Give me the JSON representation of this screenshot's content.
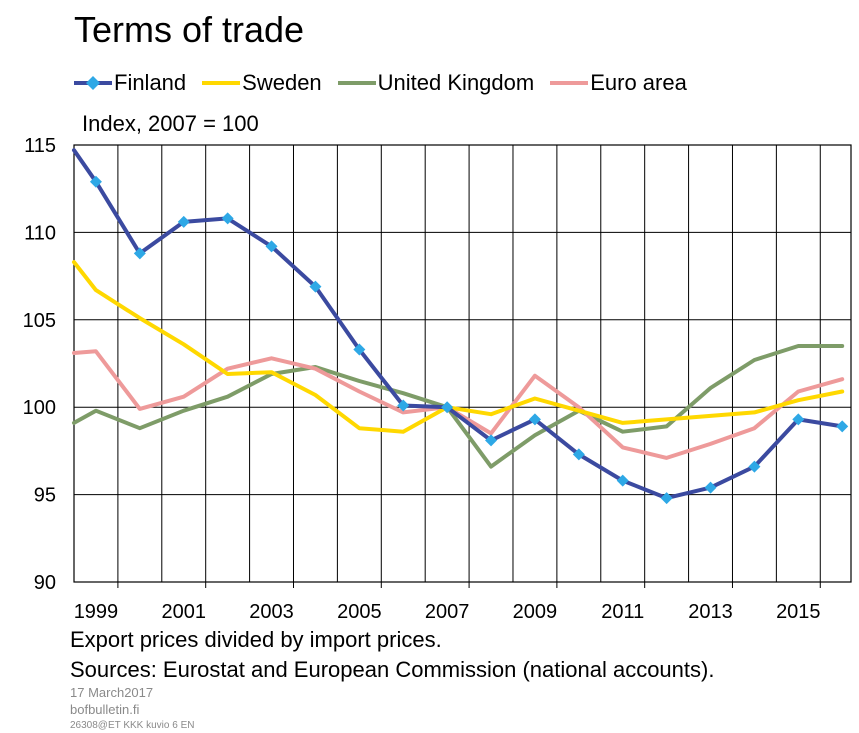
{
  "title": "Terms of trade",
  "unit_label": "Index, 2007 = 100",
  "footnotes": {
    "note": "Export prices divided by import prices.",
    "sources": "Sources: Eurostat and European Commission (national accounts).",
    "date": "17 March2017",
    "site": "bofbulletin.fi",
    "code": "26308@ET KKK kuvio 6 EN"
  },
  "chart_data": {
    "type": "line",
    "title": "Terms of trade",
    "ylabel": "Index, 2007 = 100",
    "ylim": [
      90,
      115
    ],
    "xlim": [
      1998,
      2015.7
    ],
    "y_ticks": [
      90,
      95,
      100,
      105,
      110,
      115
    ],
    "x_tick_labels": [
      "1999",
      "2001",
      "2003",
      "2005",
      "2007",
      "2009",
      "2011",
      "2013",
      "2015"
    ],
    "grid": true,
    "legend_position": "top",
    "x": [
      1998,
      1998.5,
      1999.5,
      2000.5,
      2001.5,
      2002.5,
      2003.5,
      2004.5,
      2005.5,
      2006.5,
      2007.5,
      2008.5,
      2009.5,
      2010.5,
      2011.5,
      2012.5,
      2013.5,
      2014.5,
      2015.5
    ],
    "series": [
      {
        "name": "Finland",
        "color": "#3b4aa0",
        "marker": "diamond",
        "marker_color": "#2ea8e6",
        "values": [
          114.7,
          112.9,
          108.8,
          110.6,
          110.8,
          109.2,
          106.9,
          103.3,
          100.1,
          100.0,
          98.1,
          99.3,
          97.3,
          95.8,
          94.8,
          95.4,
          96.6,
          99.3,
          98.9
        ]
      },
      {
        "name": "Sweden",
        "color": "#ffd800",
        "values": [
          108.3,
          106.7,
          105.1,
          103.6,
          101.9,
          102.0,
          100.7,
          98.8,
          98.6,
          100.0,
          99.6,
          100.5,
          99.8,
          99.1,
          99.3,
          99.5,
          99.7,
          100.4,
          100.9
        ]
      },
      {
        "name": "United Kingdom",
        "color": "#7e9c68",
        "values": [
          99.1,
          99.8,
          98.8,
          99.8,
          100.6,
          101.9,
          102.3,
          101.5,
          100.8,
          100.0,
          96.6,
          98.4,
          99.8,
          98.6,
          98.9,
          101.1,
          102.7,
          103.5,
          103.5
        ]
      },
      {
        "name": "Euro area",
        "color": "#ee9a9a",
        "values": [
          103.1,
          103.2,
          99.9,
          100.6,
          102.2,
          102.8,
          102.2,
          100.9,
          99.7,
          100.0,
          98.5,
          101.8,
          100.0,
          97.7,
          97.1,
          97.9,
          98.8,
          100.9,
          101.6
        ]
      }
    ]
  }
}
